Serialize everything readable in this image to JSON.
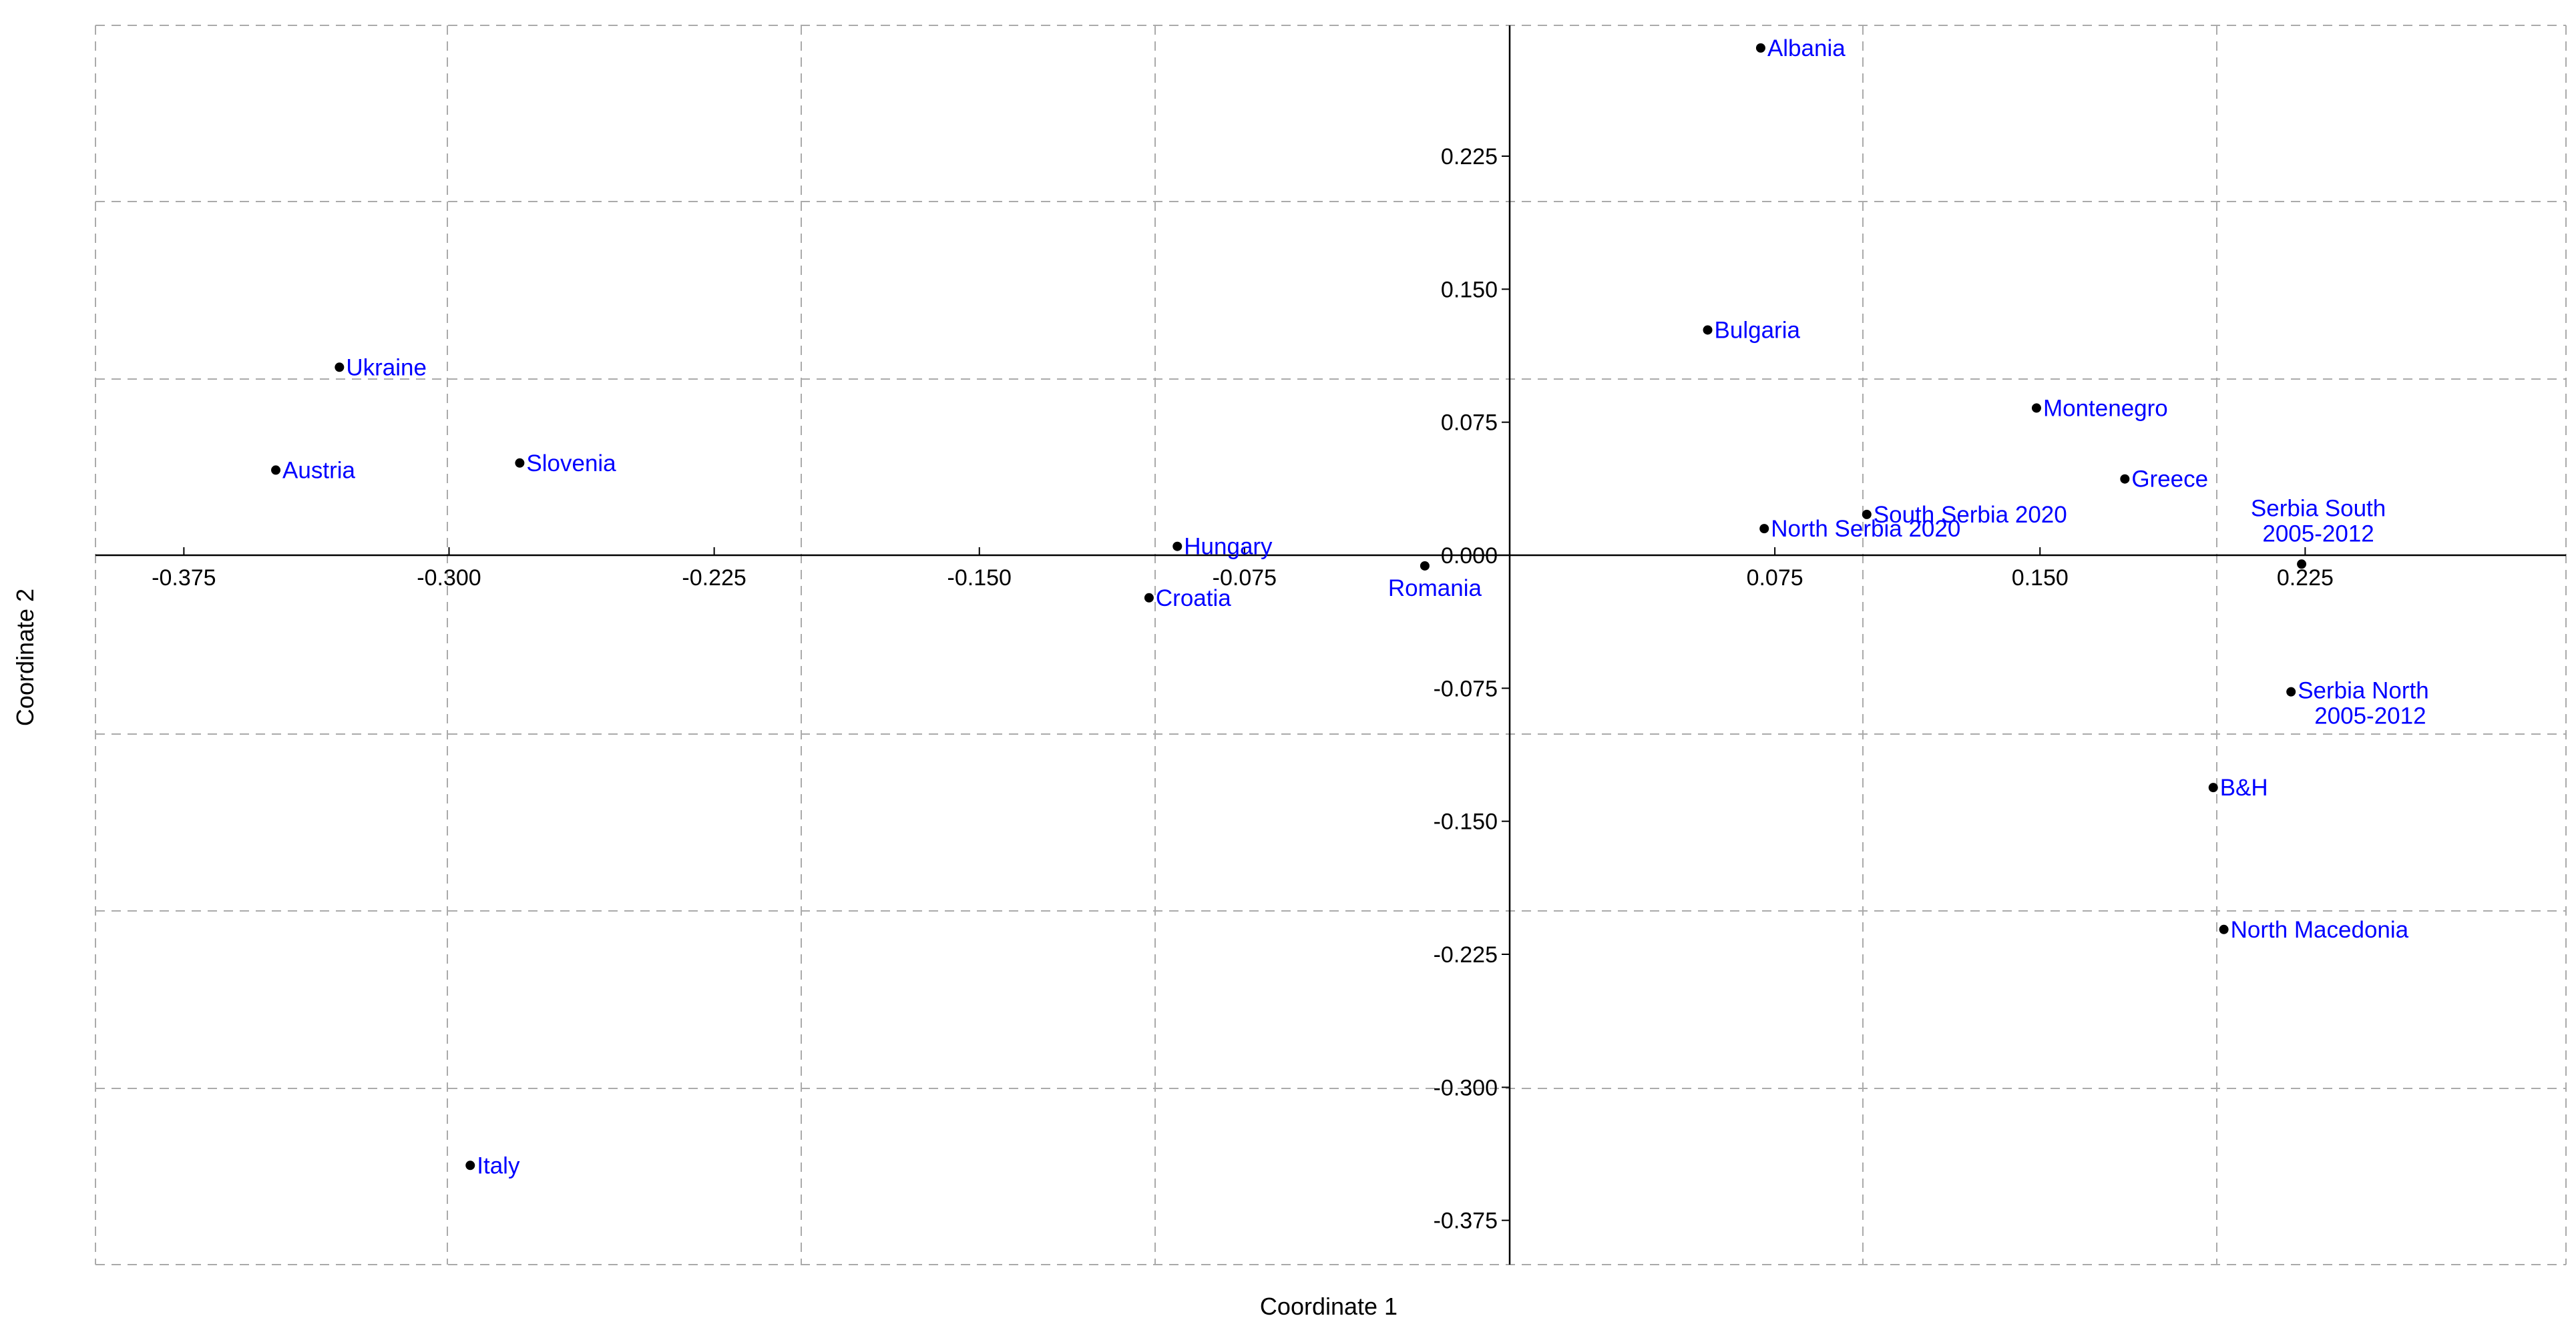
{
  "chart_data": {
    "type": "scatter",
    "title": "",
    "xlabel": "Coordinate 1",
    "ylabel": "Coordinate 2",
    "xlim": [
      -0.4,
      0.3
    ],
    "ylim": [
      -0.4,
      0.3
    ],
    "x_ticks": [
      -0.375,
      -0.3,
      -0.225,
      -0.15,
      -0.075,
      0.075,
      0.15,
      0.225
    ],
    "x_tick_labels": [
      "-0.375",
      "-0.300",
      "-0.225",
      "-0.150",
      "-0.075",
      "0.075",
      "0.150",
      "0.225"
    ],
    "y_ticks": [
      0.225,
      0.15,
      0.075,
      0.0,
      -0.075,
      -0.15,
      -0.225,
      -0.3,
      -0.375
    ],
    "y_tick_labels": [
      "0.225",
      "0.150",
      "0.075",
      "0.000",
      "-0.075",
      "-0.150",
      "-0.225",
      "-0.300",
      "-0.375"
    ],
    "grid": true,
    "grid_style": "dashed",
    "point_color": "#000000",
    "label_color": "#0000ff",
    "axis_color": "#000000",
    "grid_color": "#aaaaaa",
    "points": [
      {
        "label": "Albania",
        "x": 0.071,
        "y": 0.286
      },
      {
        "label": "Bulgaria",
        "x": 0.056,
        "y": 0.127
      },
      {
        "label": "Ukraine",
        "x": -0.331,
        "y": 0.106
      },
      {
        "label": "Montenegro",
        "x": 0.149,
        "y": 0.083
      },
      {
        "label": "Austria",
        "x": -0.349,
        "y": 0.048
      },
      {
        "label": "Slovenia",
        "x": -0.28,
        "y": 0.052
      },
      {
        "label": "Greece",
        "x": 0.174,
        "y": 0.043
      },
      {
        "label": "South Serbia 2020",
        "x": 0.101,
        "y": 0.023
      },
      {
        "label": "North Serbia 2020",
        "x": 0.072,
        "y": 0.015
      },
      {
        "label": "Serbia South 2005-2012",
        "x": 0.224,
        "y": -0.005,
        "label_lines": [
          "Serbia South",
          "2005-2012"
        ]
      },
      {
        "label": "Hungary",
        "x": -0.094,
        "y": 0.005
      },
      {
        "label": "Romania",
        "x": -0.024,
        "y": -0.006
      },
      {
        "label": "Croatia",
        "x": -0.102,
        "y": -0.024
      },
      {
        "label": "Serbia North 2005-2012",
        "x": 0.221,
        "y": -0.077,
        "label_lines": [
          "Serbia North",
          "2005-2012"
        ]
      },
      {
        "label": "B&H",
        "x": 0.199,
        "y": -0.131
      },
      {
        "label": "North Macedonia",
        "x": 0.202,
        "y": -0.211
      },
      {
        "label": "Italy",
        "x": -0.294,
        "y": -0.344
      }
    ]
  }
}
